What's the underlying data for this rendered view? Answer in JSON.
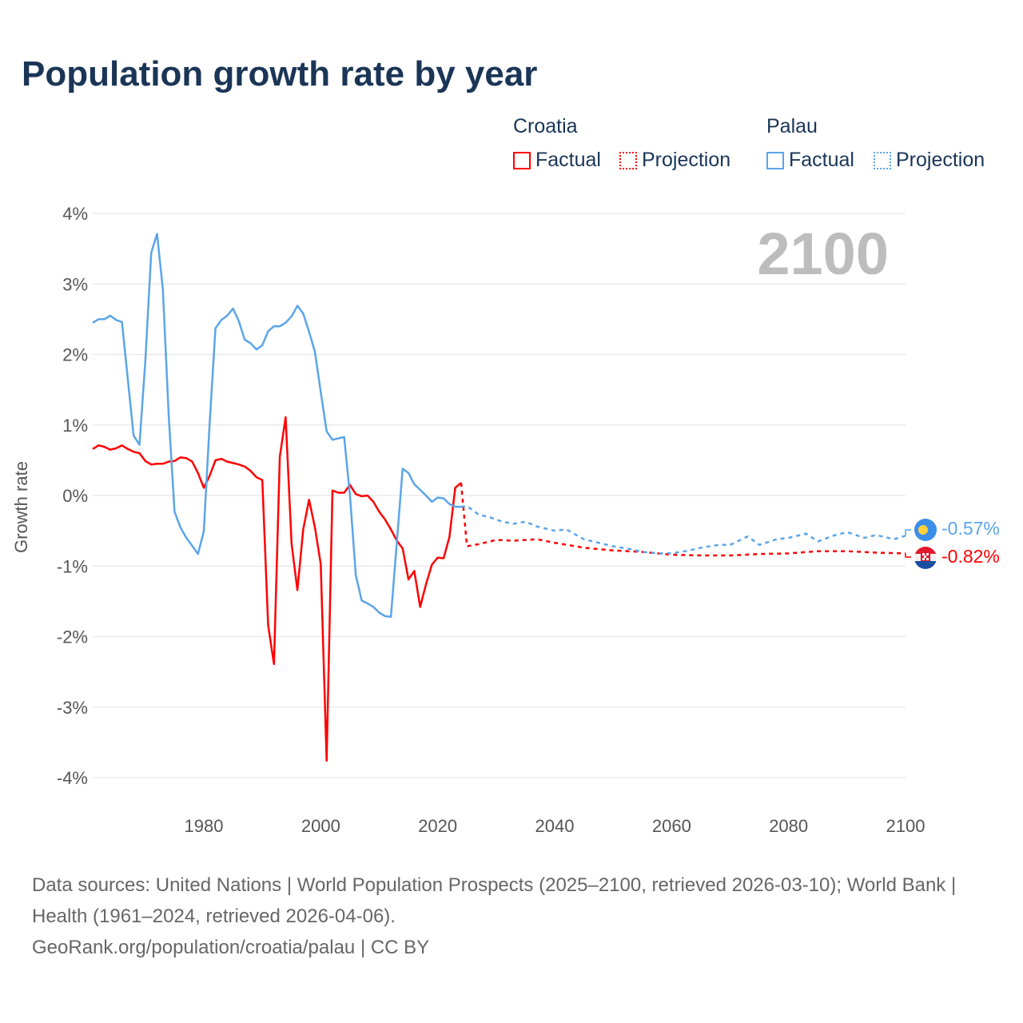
{
  "chart_data": {
    "type": "line",
    "title": "Population growth rate by year",
    "ylabel": "Growth rate",
    "xlabel": "",
    "xlim": [
      1961,
      2100
    ],
    "ylim": [
      -4,
      4
    ],
    "xticks": [
      1980,
      2000,
      2020,
      2040,
      2060,
      2080,
      2100
    ],
    "yticks": [
      4,
      3,
      2,
      1,
      0,
      -1,
      -2,
      -3,
      -4
    ],
    "ytick_labels": [
      "4%",
      "3%",
      "2%",
      "1%",
      "0%",
      "-1%",
      "-2%",
      "-3%",
      "-4%"
    ],
    "grid": true,
    "watermark_year": "2100",
    "legend": {
      "groups": [
        {
          "name": "Croatia",
          "items": [
            "Factual",
            "Projection"
          ]
        },
        {
          "name": "Palau",
          "items": [
            "Factual",
            "Projection"
          ]
        }
      ],
      "placement": "top-right"
    },
    "series": [
      {
        "name": "Croatia",
        "color": "#ff0000",
        "end_label": "-0.82%",
        "factual": {
          "x": [
            1961,
            1962,
            1963,
            1964,
            1965,
            1966,
            1967,
            1968,
            1969,
            1970,
            1971,
            1972,
            1973,
            1974,
            1975,
            1976,
            1977,
            1978,
            1979,
            1980,
            1981,
            1982,
            1983,
            1984,
            1985,
            1986,
            1987,
            1988,
            1989,
            1990,
            1991,
            1992,
            1993,
            1994,
            1995,
            1996,
            1997,
            1998,
            1999,
            2000,
            2001,
            2002,
            2003,
            2004,
            2005,
            2006,
            2007,
            2008,
            2009,
            2010,
            2011,
            2012,
            2013,
            2014,
            2015,
            2016,
            2017,
            2018,
            2019,
            2020,
            2021,
            2022,
            2023,
            2024
          ],
          "y": [
            0.66,
            0.71,
            0.69,
            0.65,
            0.67,
            0.71,
            0.66,
            0.62,
            0.6,
            0.49,
            0.44,
            0.45,
            0.45,
            0.48,
            0.49,
            0.54,
            0.53,
            0.48,
            0.32,
            0.11,
            0.28,
            0.5,
            0.52,
            0.48,
            0.46,
            0.44,
            0.41,
            0.35,
            0.26,
            0.22,
            -1.84,
            -2.39,
            0.55,
            1.11,
            -0.68,
            -1.34,
            -0.48,
            -0.06,
            -0.45,
            -0.97,
            -3.76,
            0.07,
            0.04,
            0.04,
            0.15,
            0.02,
            -0.01,
            0.0,
            -0.09,
            -0.23,
            -0.34,
            -0.48,
            -0.64,
            -0.75,
            -1.19,
            -1.07,
            -1.58,
            -1.26,
            -0.98,
            -0.88,
            -0.89,
            -0.59,
            0.11,
            0.18
          ]
        },
        "projection": {
          "x": [
            2024,
            2025,
            2027,
            2030,
            2033,
            2035,
            2037,
            2040,
            2045,
            2050,
            2055,
            2060,
            2065,
            2070,
            2075,
            2080,
            2085,
            2090,
            2095,
            2100
          ],
          "y": [
            0.18,
            -0.72,
            -0.69,
            -0.63,
            -0.64,
            -0.63,
            -0.62,
            -0.67,
            -0.74,
            -0.78,
            -0.8,
            -0.84,
            -0.85,
            -0.85,
            -0.83,
            -0.82,
            -0.79,
            -0.79,
            -0.81,
            -0.82
          ]
        }
      },
      {
        "name": "Palau",
        "color": "#5aa5e8",
        "end_label": "-0.57%",
        "factual": {
          "x": [
            1961,
            1962,
            1963,
            1964,
            1965,
            1966,
            1967,
            1968,
            1969,
            1970,
            1971,
            1972,
            1973,
            1974,
            1975,
            1976,
            1977,
            1978,
            1979,
            1980,
            1981,
            1982,
            1983,
            1984,
            1985,
            1986,
            1987,
            1988,
            1989,
            1990,
            1991,
            1992,
            1993,
            1994,
            1995,
            1996,
            1997,
            1998,
            1999,
            2000,
            2001,
            2002,
            2003,
            2004,
            2005,
            2006,
            2007,
            2008,
            2009,
            2010,
            2011,
            2012,
            2013,
            2014,
            2015,
            2016,
            2017,
            2018,
            2019,
            2020,
            2021,
            2022,
            2023,
            2024
          ],
          "y": [
            2.45,
            2.5,
            2.5,
            2.55,
            2.49,
            2.46,
            1.65,
            0.85,
            0.72,
            1.9,
            3.44,
            3.71,
            2.92,
            1.13,
            -0.23,
            -0.45,
            -0.6,
            -0.71,
            -0.83,
            -0.51,
            1.02,
            2.37,
            2.49,
            2.55,
            2.65,
            2.47,
            2.21,
            2.16,
            2.07,
            2.13,
            2.33,
            2.4,
            2.4,
            2.45,
            2.54,
            2.69,
            2.58,
            2.32,
            2.04,
            1.47,
            0.91,
            0.79,
            0.81,
            0.83,
            0.0,
            -1.13,
            -1.49,
            -1.53,
            -1.58,
            -1.66,
            -1.71,
            -1.72,
            -0.67,
            0.38,
            0.32,
            0.16,
            0.08,
            0.0,
            -0.09,
            -0.03,
            -0.04,
            -0.12,
            -0.16,
            -0.16
          ]
        },
        "projection": {
          "x": [
            2024,
            2025,
            2027,
            2029,
            2031,
            2033,
            2035,
            2037,
            2040,
            2042,
            2045,
            2047,
            2050,
            2053,
            2055,
            2058,
            2060,
            2063,
            2065,
            2068,
            2070,
            2073,
            2075,
            2078,
            2080,
            2083,
            2085,
            2088,
            2090,
            2093,
            2095,
            2098,
            2100
          ],
          "y": [
            -0.16,
            -0.15,
            -0.27,
            -0.31,
            -0.37,
            -0.4,
            -0.37,
            -0.44,
            -0.5,
            -0.48,
            -0.62,
            -0.66,
            -0.72,
            -0.76,
            -0.8,
            -0.82,
            -0.82,
            -0.78,
            -0.74,
            -0.7,
            -0.7,
            -0.58,
            -0.7,
            -0.62,
            -0.6,
            -0.54,
            -0.65,
            -0.56,
            -0.52,
            -0.6,
            -0.56,
            -0.62,
            -0.57
          ]
        }
      }
    ]
  },
  "footer": {
    "sources": "Data sources: United Nations | World Population Prospects (2025–2100, retrieved 2026-03-10); World Bank | Health (1961–2024, retrieved 2026-04-06).",
    "credit": "GeoRank.org/population/croatia/palau | CC BY"
  }
}
